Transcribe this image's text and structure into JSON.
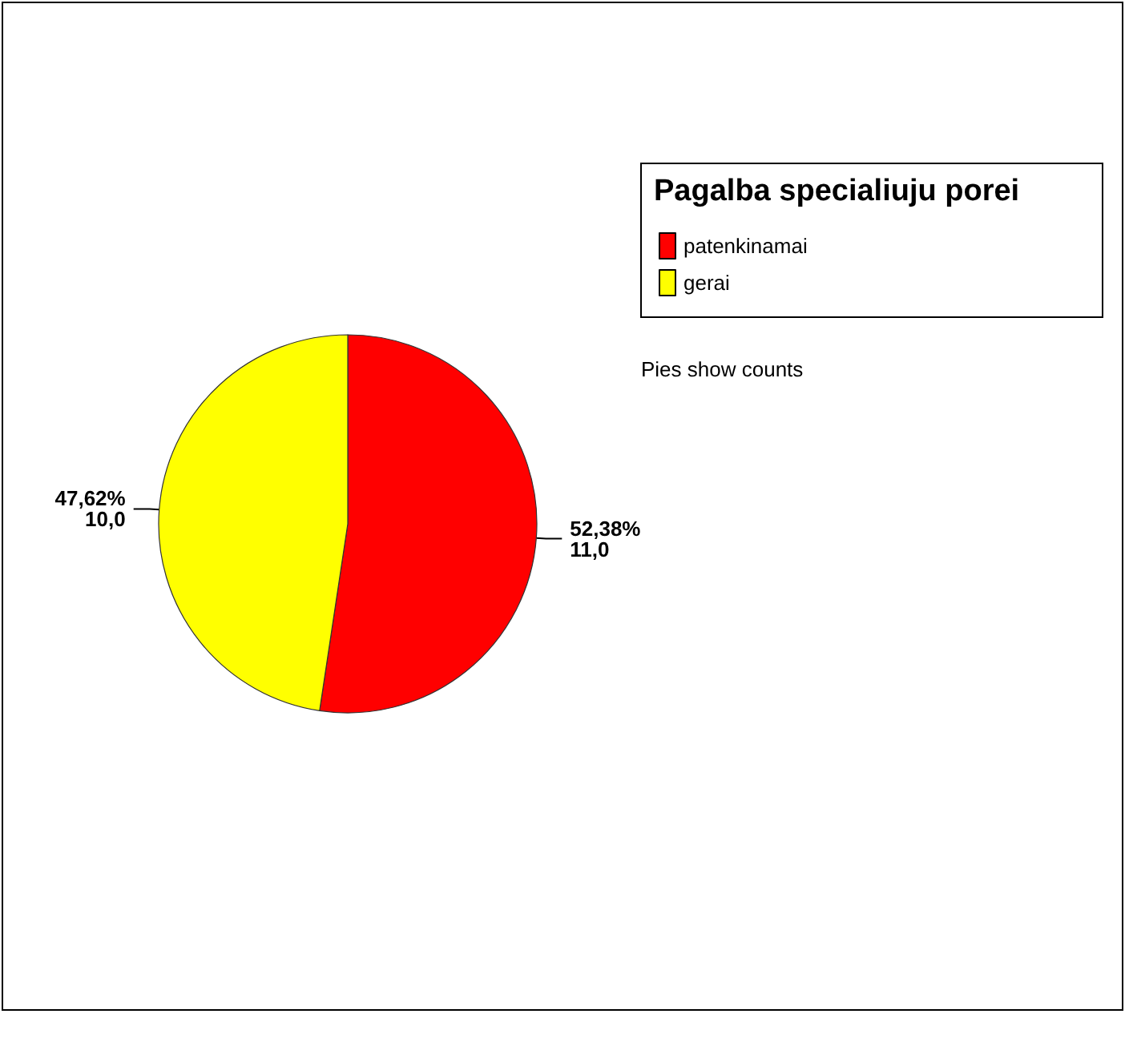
{
  "chart_data": {
    "type": "pie",
    "legend_title": "Pagalba specialiuju porei",
    "categories": [
      "patenkinamai",
      "gerai"
    ],
    "values": [
      11,
      10
    ],
    "colors": [
      "#ff0000",
      "#ffff00"
    ],
    "value_labels": [
      "52,38%\n11,0",
      "47,62%\n10,0"
    ],
    "legend": "top right",
    "annotations": [
      "Pies show counts"
    ]
  }
}
